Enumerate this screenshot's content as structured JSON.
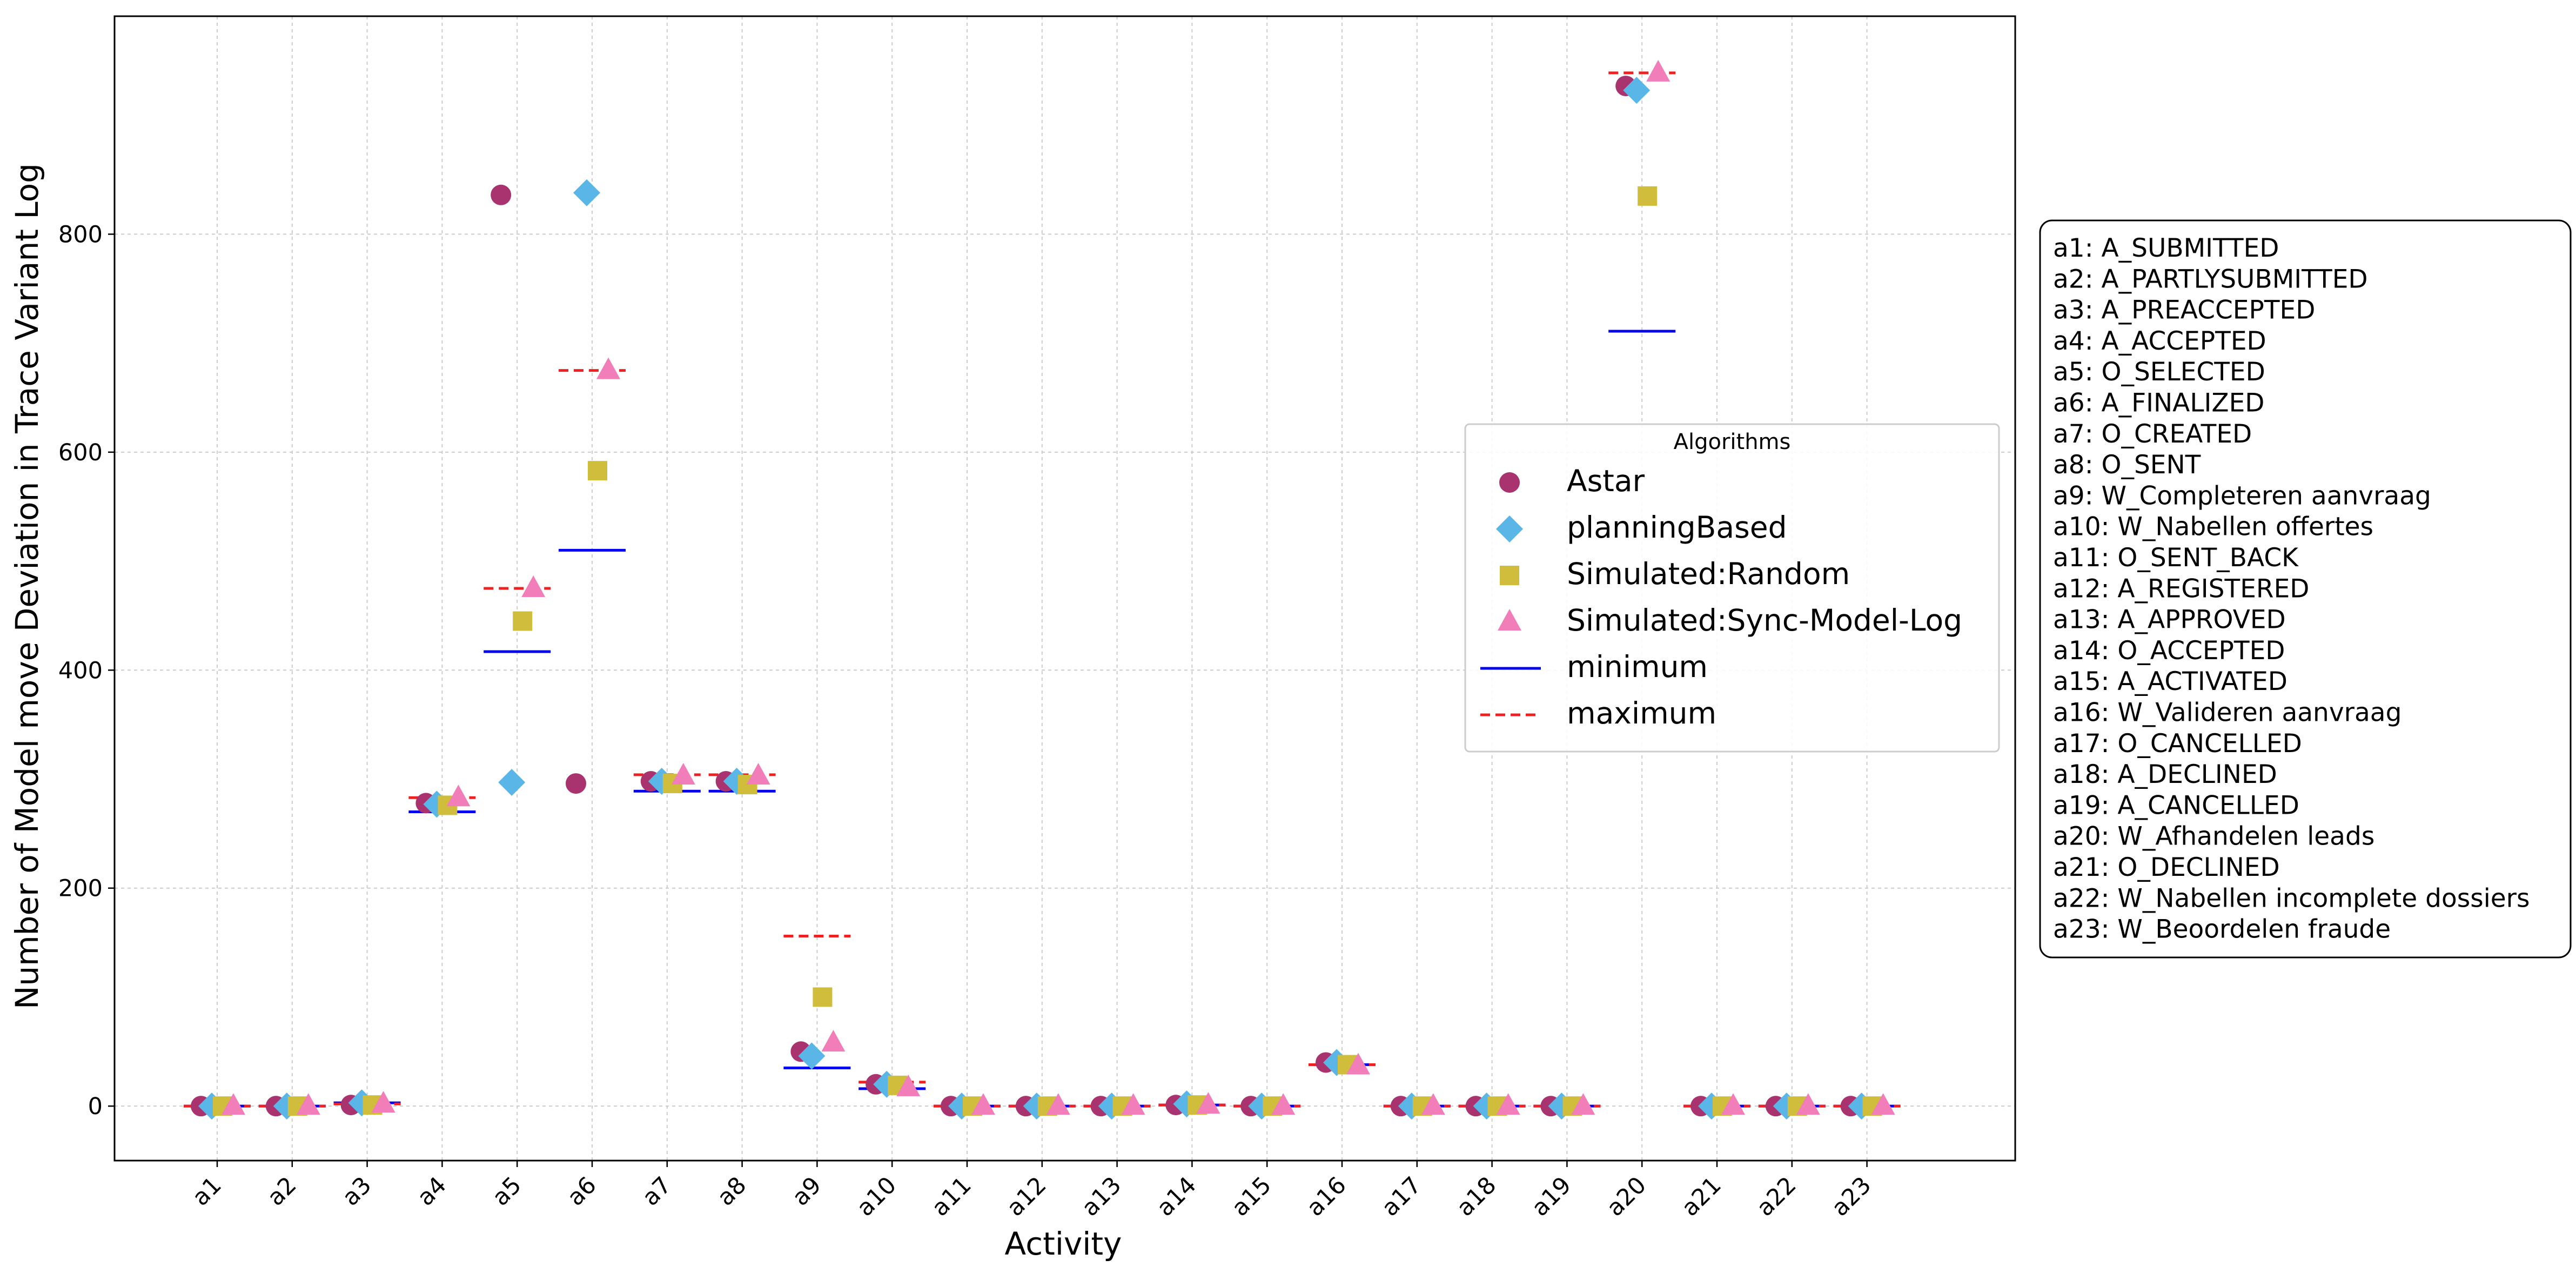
{
  "chart_data": {
    "type": "scatter",
    "title": "",
    "xlabel": "Activity",
    "ylabel": "Number of Model move Deviation  in Trace Variant Log",
    "ylim": [
      -50,
      1000
    ],
    "yticks": [
      0,
      200,
      400,
      600,
      800
    ],
    "grid": true,
    "legend_title": "Algorithms",
    "legend_position": "center-right",
    "categories": [
      "a1",
      "a2",
      "a3",
      "a4",
      "a5",
      "a6",
      "a7",
      "a8",
      "a9",
      "a10",
      "a11",
      "a12",
      "a13",
      "a14",
      "a15",
      "a16",
      "a17",
      "a18",
      "a19",
      "a20",
      "a21",
      "a22",
      "a23"
    ],
    "series": [
      {
        "name": "Astar",
        "marker": "circle",
        "color": "#a8336e",
        "values": [
          0,
          0,
          1,
          278,
          836,
          296,
          298,
          298,
          50,
          20,
          0,
          0,
          0,
          1,
          0,
          40,
          0,
          0,
          0,
          936,
          0,
          0,
          0
        ]
      },
      {
        "name": "planningBased",
        "marker": "diamond",
        "color": "#5bb6e8",
        "values": [
          0,
          0,
          3,
          277,
          297,
          838,
          298,
          298,
          46,
          20,
          0,
          0,
          0,
          2,
          0,
          40,
          0,
          0,
          0,
          932,
          0,
          0,
          0
        ]
      },
      {
        "name": "Simulated:Random",
        "marker": "square",
        "color": "#d0bd3c",
        "values": [
          0,
          0,
          1,
          276,
          445,
          583,
          296,
          295,
          100,
          19,
          0,
          0,
          0,
          1,
          0,
          38,
          0,
          0,
          0,
          835,
          0,
          0,
          0
        ]
      },
      {
        "name": "Simulated:Sync-Model-Log",
        "marker": "triangle",
        "color": "#f17eb8",
        "values": [
          0,
          0,
          2,
          283,
          475,
          675,
          303,
          303,
          58,
          17,
          0,
          0,
          0,
          1,
          0,
          37,
          0,
          0,
          0,
          948,
          0,
          0,
          0
        ]
      }
    ],
    "lines": [
      {
        "name": "minimum",
        "style": "solid",
        "color": "#0000ee",
        "values": [
          0,
          0,
          3,
          270,
          417,
          510,
          289,
          289,
          35,
          16,
          0,
          0,
          0,
          1,
          0,
          38,
          0,
          0,
          0,
          711,
          0,
          0,
          0
        ]
      },
      {
        "name": "maximum",
        "style": "dashed",
        "color": "#ee2020",
        "values": [
          0,
          0,
          2,
          283,
          475,
          675,
          304,
          304,
          156,
          22,
          0,
          0,
          0,
          1,
          0,
          38,
          0,
          0,
          0,
          948,
          0,
          0,
          0
        ]
      }
    ]
  },
  "activity_mapping": [
    "a1: A_SUBMITTED",
    "a2: A_PARTLYSUBMITTED",
    "a3: A_PREACCEPTED",
    "a4: A_ACCEPTED",
    "a5: O_SELECTED",
    "a6: A_FINALIZED",
    "a7: O_CREATED",
    "a8: O_SENT",
    "a9: W_Completeren aanvraag",
    "a10: W_Nabellen offertes",
    "a11: O_SENT_BACK",
    "a12: A_REGISTERED",
    "a13: A_APPROVED",
    "a14: O_ACCEPTED",
    "a15: A_ACTIVATED",
    "a16: W_Valideren aanvraag",
    "a17: O_CANCELLED",
    "a18: A_DECLINED",
    "a19: A_CANCELLED",
    "a20: W_Afhandelen leads",
    "a21: O_DECLINED",
    "a22: W_Nabellen incomplete dossiers",
    "a23: W_Beoordelen fraude"
  ]
}
